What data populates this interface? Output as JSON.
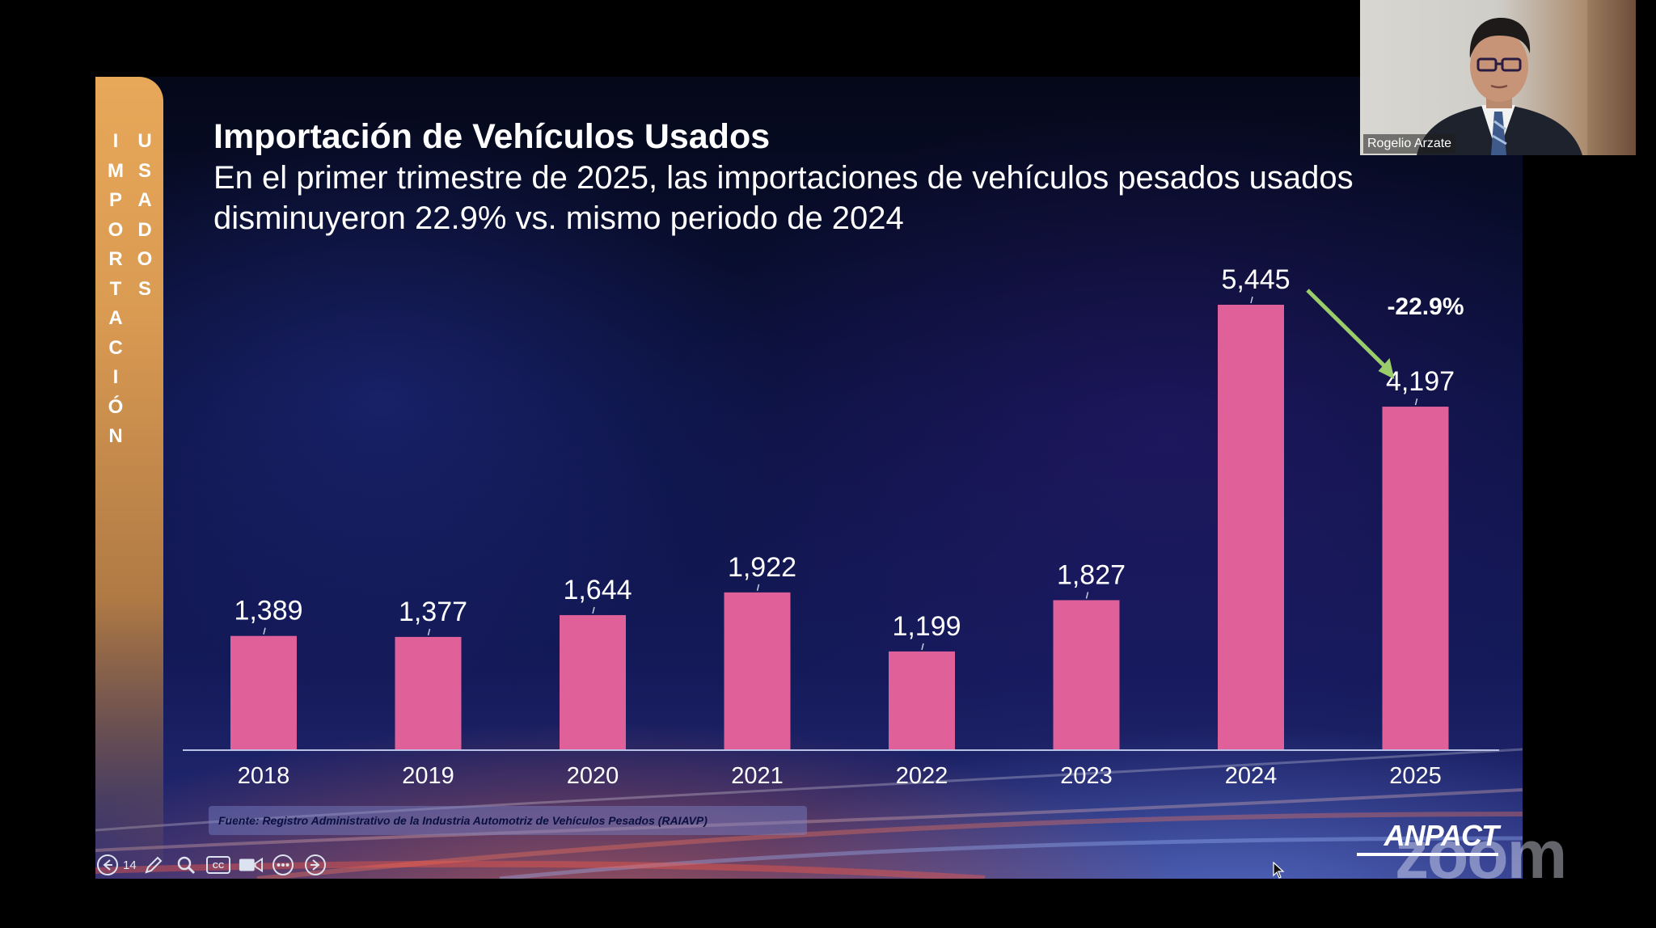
{
  "slide": {
    "band_left_letters": [
      "I",
      "M",
      "P",
      "O",
      "R",
      "T",
      "A",
      "C",
      "I",
      "Ó",
      "N"
    ],
    "band_right_letters": [
      "U",
      "S",
      "A",
      "D",
      "O",
      "S"
    ],
    "title": "Importación de Vehículos Usados",
    "subtitle": "En el primer trimestre de 2025, las importaciones de vehículos pesados usados disminuyeron 22.9% vs. mismo periodo de 2024",
    "change_label": "-22.9%",
    "source": "Fuente: Registro Administrativo de la Industria Automotriz de Vehículos Pesados (RAIAVP)",
    "logo": "ANPACT",
    "colors": {
      "bar": "#e0609a",
      "band": "#e0a05a",
      "arrow": "#9bcc6a"
    }
  },
  "chart_data": {
    "type": "bar",
    "categories": [
      "2018",
      "2019",
      "2020",
      "2021",
      "2022",
      "2023",
      "2024",
      "2025"
    ],
    "values": [
      1389,
      1377,
      1644,
      1922,
      1199,
      1827,
      5445,
      4197
    ],
    "value_labels": [
      "1,389",
      "1,377",
      "1,644",
      "1,922",
      "1,199",
      "1,827",
      "5,445",
      "4,197"
    ],
    "title": "Importación de Vehículos Usados",
    "xlabel": "",
    "ylabel": "",
    "ylim": [
      0,
      5445
    ],
    "grid": false,
    "legend": "none",
    "annotations": [
      {
        "text": "-22.9%",
        "from": "2024",
        "to": "2025"
      }
    ]
  },
  "controls": {
    "page_number": "14",
    "icons": [
      "prev-arrow-icon",
      "pen-icon",
      "magnifier-icon",
      "cc-icon",
      "video-icon",
      "more-icon",
      "next-arrow-icon"
    ],
    "cc_label": "CC"
  },
  "video": {
    "participant_name": "Rogelio Arzate"
  },
  "watermark": "zoom"
}
